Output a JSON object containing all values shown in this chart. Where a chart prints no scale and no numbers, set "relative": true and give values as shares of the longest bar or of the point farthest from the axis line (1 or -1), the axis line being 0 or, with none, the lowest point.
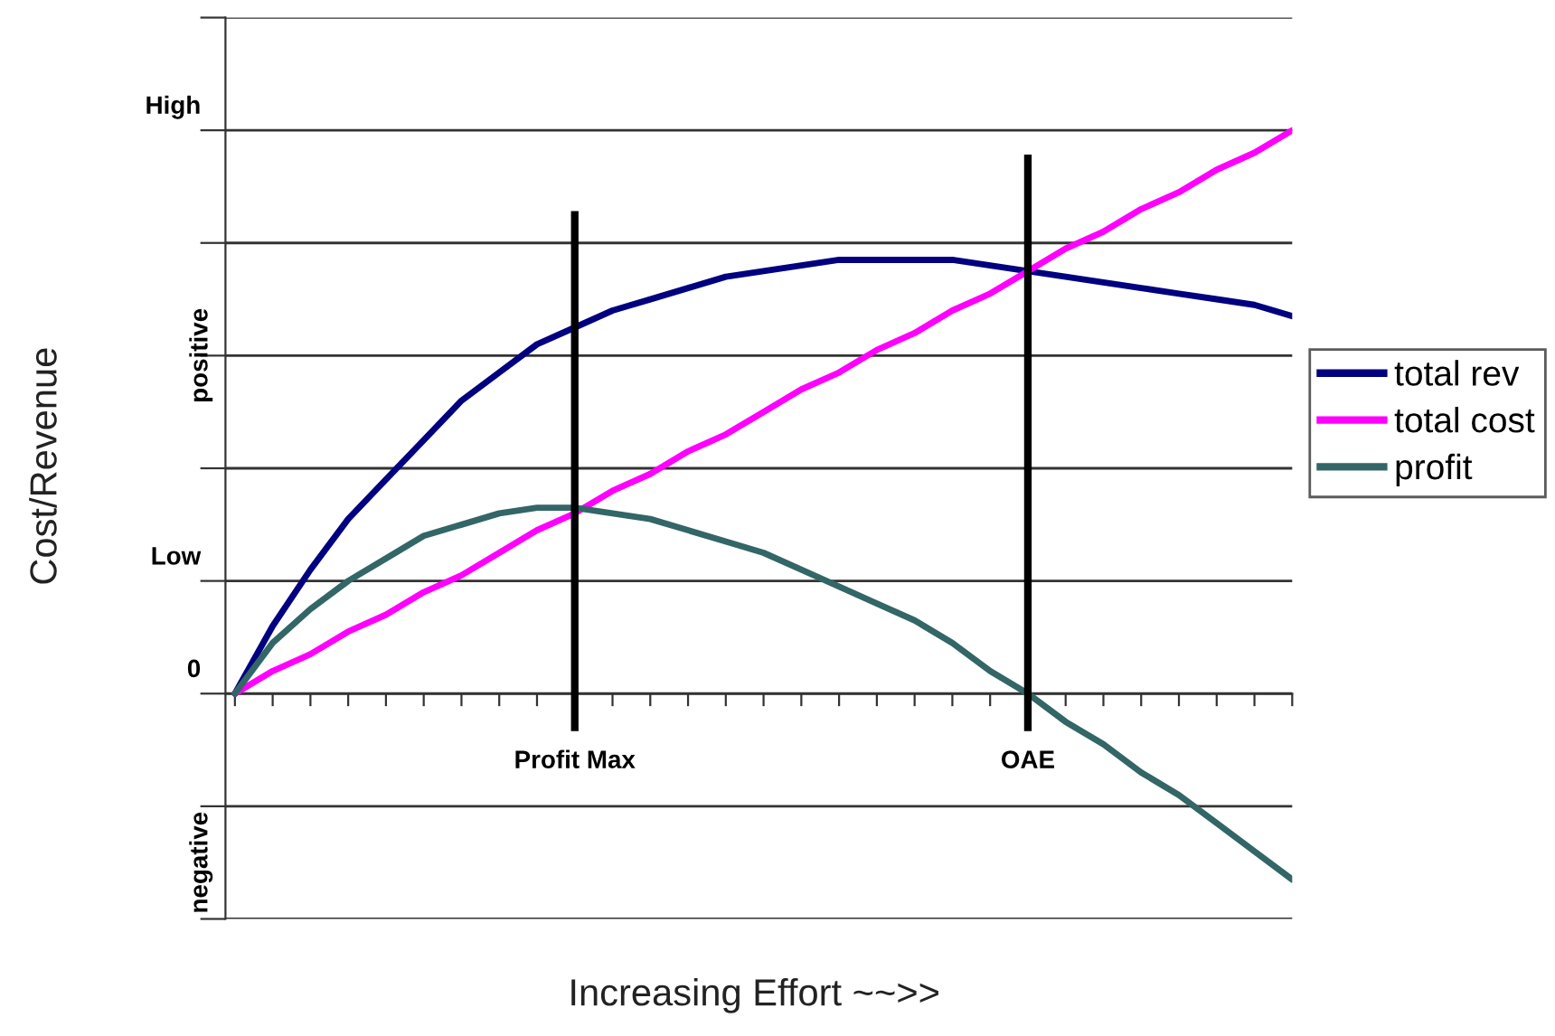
{
  "chart_data": {
    "type": "line",
    "relative": true,
    "xlabel": "Increasing Effort ~~>>",
    "ylabel": "Cost/Revenue",
    "categories": [
      null,
      null,
      null,
      null,
      null,
      null,
      null,
      null,
      null,
      null,
      null,
      null,
      null,
      null,
      null,
      null,
      null,
      null,
      null,
      null,
      null,
      null,
      null,
      null,
      null,
      null,
      null,
      null,
      null
    ],
    "series": [
      {
        "name": "total rev",
        "color": "#000080",
        "values": [
          0,
          0.12,
          0.22,
          0.31,
          0.38,
          0.45,
          0.52,
          0.57,
          0.62,
          0.65,
          0.68,
          0.7,
          0.72,
          0.74,
          0.75,
          0.76,
          0.77,
          0.77,
          0.77,
          0.77,
          0.76,
          0.75,
          0.74,
          0.73,
          0.72,
          0.71,
          0.7,
          0.69,
          0.67
        ]
      },
      {
        "name": "total cost",
        "color": "#ff00ff",
        "values": [
          0,
          0.04,
          0.07,
          0.11,
          0.14,
          0.18,
          0.21,
          0.25,
          0.29,
          0.32,
          0.36,
          0.39,
          0.43,
          0.46,
          0.5,
          0.54,
          0.57,
          0.61,
          0.64,
          0.68,
          0.71,
          0.75,
          0.79,
          0.82,
          0.86,
          0.89,
          0.93,
          0.96,
          1
        ]
      },
      {
        "name": "profit",
        "color": "#336666",
        "values": [
          0,
          0.09,
          0.15,
          0.2,
          0.24,
          0.28,
          0.3,
          0.32,
          0.33,
          0.33,
          0.32,
          0.31,
          0.29,
          0.27,
          0.25,
          0.22,
          0.19,
          0.16,
          0.13,
          0.09,
          0.04,
          0,
          -0.05,
          -0.09,
          -0.14,
          -0.18,
          -0.23,
          -0.28,
          -0.33
        ]
      }
    ],
    "annotations": [
      "High",
      "positive",
      "Low",
      "0",
      "negative",
      "Profit Max",
      "OAE"
    ],
    "grid": "y",
    "legend": "right",
    "marker": "none",
    "line_style": "solid"
  }
}
